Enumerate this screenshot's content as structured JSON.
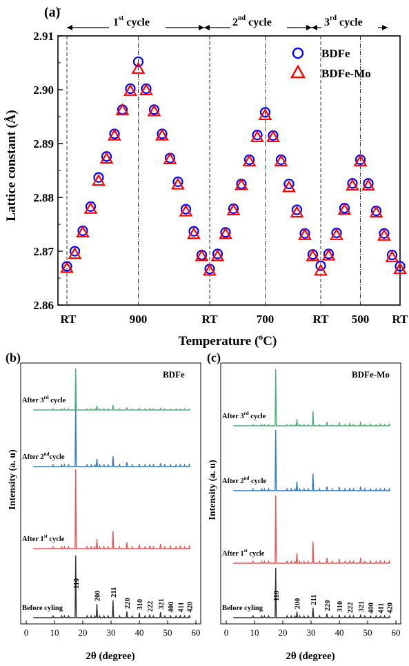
{
  "panel_a": {
    "label": "(a)",
    "cycles": [
      "1",
      "2",
      "3"
    ],
    "cycle_superscripts": [
      "st",
      "nd",
      "rd"
    ],
    "cycle_word": "cycle",
    "ylabel": "Lattice constant (Å)",
    "xlabel_main": "Temperature (",
    "xlabel_sup": "o",
    "xlabel_end": "C)",
    "xticks": [
      "RT",
      "900",
      "RT",
      "700",
      "RT",
      "500",
      "RT"
    ]
  },
  "panel_b": {
    "label": "(b)",
    "sample": "BDFe",
    "traces": [
      {
        "label": "After 3",
        "sup": "rd",
        "end": " cycle"
      },
      {
        "label": "After 2",
        "sup": "nd",
        "end": "cycle"
      },
      {
        "label": "After 1",
        "sup": "st",
        "end": " cycle"
      },
      {
        "label": "Before cyling",
        "sup": "",
        "end": ""
      }
    ]
  },
  "panel_c": {
    "label": "(c)",
    "sample": "BDFe-Mo",
    "traces": [
      {
        "label": "After 3",
        "sup": "rd",
        "end": " cycle"
      },
      {
        "label": "After 2",
        "sup": "nd",
        "end": " cycle"
      },
      {
        "label": "After 1",
        "sup": "st",
        "end": " cycle"
      },
      {
        "label": "Before cyling",
        "sup": "",
        "end": ""
      }
    ]
  },
  "xrd_common": {
    "ylabel": "Intensity (a. u)",
    "xlabel": "2θ (degree)",
    "xticks": [
      "0",
      "10",
      "20",
      "30",
      "40",
      "50",
      "60"
    ]
  },
  "colors": {
    "BDFe": "#0000ff",
    "BDFe-Mo": "#ff0000",
    "trace_before": "#333333",
    "trace_1st": "#e8585a",
    "trace_2nd": "#2f7cc9",
    "trace_3rd": "#4cb07a"
  },
  "chart_data": [
    {
      "type": "scatter",
      "panel": "(a)",
      "ylabel": "Lattice constant (Å)",
      "xlabel": "Temperature (oC)",
      "x_tick_labels": [
        "RT",
        "900",
        "RT",
        "700",
        "RT",
        "500",
        "RT"
      ],
      "ylim": [
        2.86,
        2.91
      ],
      "yticks": [
        2.86,
        2.87,
        2.88,
        2.89,
        2.9,
        2.91
      ],
      "legend_position": "top-right",
      "markers": {
        "BDFe": "open circle",
        "BDFe-Mo": "open triangle"
      },
      "series": [
        {
          "name": "BDFe",
          "values": [
            2.8672,
            2.87,
            2.8738,
            2.8783,
            2.8837,
            2.8876,
            2.8918,
            2.8963,
            2.9002,
            2.9052,
            2.9002,
            2.8963,
            2.8918,
            2.8873,
            2.8829,
            2.8778,
            2.8737,
            2.8693,
            2.8667,
            2.8695,
            2.8735,
            2.8779,
            2.8825,
            2.887,
            2.8916,
            2.8958,
            2.8915,
            2.887,
            2.8825,
            2.8777,
            2.8733,
            2.8694,
            2.8673,
            2.8695,
            2.8734,
            2.878,
            2.8826,
            2.887,
            2.8826,
            2.8775,
            2.8733,
            2.8693,
            2.8672
          ]
        },
        {
          "name": "BDFe-Mo",
          "values": [
            2.867,
            2.8696,
            2.8736,
            2.878,
            2.8832,
            2.8873,
            2.8916,
            2.8963,
            2.8999,
            2.904,
            2.9,
            2.8961,
            2.8916,
            2.8872,
            2.8825,
            2.8775,
            2.8733,
            2.8692,
            2.8665,
            2.8692,
            2.8733,
            2.8777,
            2.8824,
            2.8868,
            2.8913,
            2.8954,
            2.8913,
            2.8868,
            2.882,
            2.8773,
            2.8731,
            2.8692,
            2.8665,
            2.8693,
            2.8731,
            2.8778,
            2.8823,
            2.8868,
            2.8823,
            2.8773,
            2.873,
            2.869,
            2.8668
          ]
        }
      ]
    },
    {
      "type": "line",
      "panel": "(b)",
      "title": "BDFe",
      "xlabel": "2θ (degree)",
      "ylabel": "Intensity (a. u)",
      "xlim": [
        0,
        60
      ],
      "peaks_2theta": [
        17.5,
        25.0,
        30.7,
        35.6,
        40.0,
        43.7,
        47.5,
        51.0,
        54.5,
        57.7
      ],
      "peak_labels": [
        "110",
        "200",
        "211",
        "220",
        "310",
        "222",
        "321",
        "400",
        "411",
        "420"
      ],
      "series": [
        {
          "name": "Before cyling",
          "relative_heights": [
            1.0,
            0.22,
            0.28,
            0.1,
            0.08,
            0.05,
            0.09,
            0.04,
            0.04,
            0.04
          ]
        },
        {
          "name": "After 1st cycle",
          "relative_heights": [
            1.0,
            0.12,
            0.22,
            0.08,
            0.05,
            0.04,
            0.06,
            0.03,
            0.03,
            0.03
          ]
        },
        {
          "name": "After 2nd cycle",
          "relative_heights": [
            1.0,
            0.12,
            0.16,
            0.07,
            0.04,
            0.03,
            0.05,
            0.03,
            0.03,
            0.03
          ]
        },
        {
          "name": "After 3rd cycle",
          "relative_heights": [
            1.0,
            0.1,
            0.12,
            0.06,
            0.04,
            0.03,
            0.04,
            0.02,
            0.02,
            0.02
          ]
        }
      ]
    },
    {
      "type": "line",
      "panel": "(c)",
      "title": "BDFe-Mo",
      "xlabel": "2θ (degree)",
      "ylabel": "Intensity (a. u)",
      "xlim": [
        0,
        60
      ],
      "peaks_2theta": [
        17.5,
        25.0,
        30.7,
        35.6,
        40.0,
        43.7,
        47.5,
        51.0,
        54.5,
        57.7
      ],
      "peak_labels": [
        "110",
        "200",
        "211",
        "220",
        "310",
        "222",
        "321",
        "400",
        "411",
        "420"
      ],
      "series": [
        {
          "name": "Before cyling",
          "relative_heights": [
            1.0,
            0.12,
            0.2,
            0.08,
            0.06,
            0.04,
            0.06,
            0.03,
            0.03,
            0.03
          ]
        },
        {
          "name": "After 1st cycle",
          "relative_heights": [
            1.0,
            0.15,
            0.32,
            0.08,
            0.06,
            0.04,
            0.08,
            0.03,
            0.03,
            0.03
          ]
        },
        {
          "name": "After 2nd cycle",
          "relative_heights": [
            1.0,
            0.15,
            0.28,
            0.07,
            0.06,
            0.04,
            0.07,
            0.03,
            0.03,
            0.03
          ]
        },
        {
          "name": "After 3rd cycle",
          "relative_heights": [
            1.0,
            0.12,
            0.26,
            0.07,
            0.06,
            0.04,
            0.07,
            0.03,
            0.03,
            0.03
          ]
        }
      ]
    }
  ]
}
